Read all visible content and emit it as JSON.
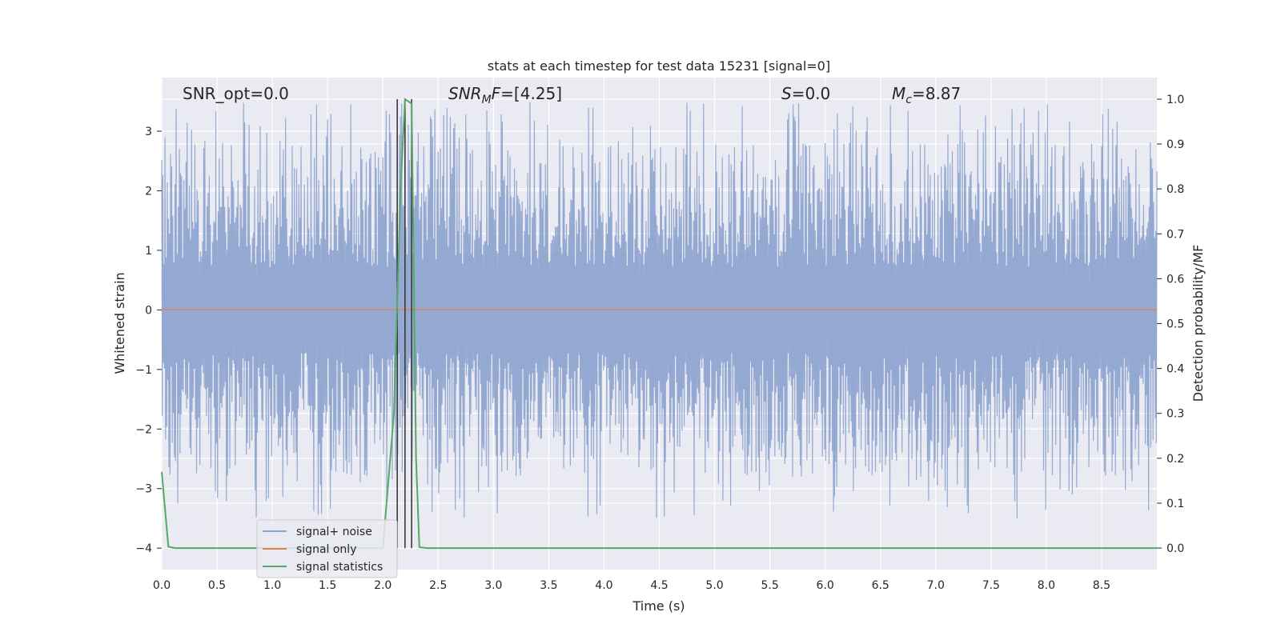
{
  "chart_data": {
    "type": "line",
    "title": "stats at each timestep for test data 15231 [signal=0]",
    "xlabel": "Time (s)",
    "ylabel": "Whitened strain",
    "y2label": "Detection probability/MF",
    "xlim": [
      0.0,
      9.0
    ],
    "ylim": [
      -4.36,
      3.9
    ],
    "y2lim": [
      -0.048,
      1.048
    ],
    "xticks": [
      "0.0",
      "0.5",
      "1.0",
      "1.5",
      "2.0",
      "2.5",
      "3.0",
      "3.5",
      "4.0",
      "4.5",
      "5.0",
      "5.5",
      "6.0",
      "6.5",
      "7.0",
      "7.5",
      "8.0",
      "8.5"
    ],
    "yticks": [
      "3",
      "2",
      "1",
      "0",
      "−1",
      "−2",
      "−3",
      "−4"
    ],
    "y2ticks": [
      "1.0",
      "0.9",
      "0.8",
      "0.7",
      "0.6",
      "0.5",
      "0.4",
      "0.3",
      "0.2",
      "0.1",
      "0.0"
    ],
    "grid": true,
    "legend_position": "lower-left",
    "annotations": {
      "snr_opt": "SNR_opt=0.0",
      "snr_mf": "SNR",
      "snr_mf_sub": "M",
      "snr_mf_mid": "F",
      "snr_mf_val": "=[4.25]",
      "s_sym": "S",
      "s_val": "=0.0",
      "mc_sym": "M",
      "mc_sub": "c",
      "mc_val": "=8.87"
    },
    "series": [
      {
        "name": "signal+ noise",
        "color": "#8fa5d0",
        "description": "Whitened strain noise, roughly between -4 and 3.5 over the full 0–9 s window",
        "envelope_outer": [
          -3.9,
          3.5
        ],
        "envelope_inner": [
          -1.8,
          1.8
        ]
      },
      {
        "name": "signal only",
        "color": "#dd8452",
        "x": [
          0.0,
          9.0
        ],
        "y": [
          0.0,
          0.0
        ]
      },
      {
        "name": "signal statistics",
        "color": "#55a868",
        "axis": "right",
        "x": [
          0.0,
          0.06,
          0.12,
          2.0,
          2.1,
          2.16,
          2.2,
          2.26,
          2.3,
          2.33,
          2.4,
          9.0
        ],
        "y": [
          0.17,
          0.003,
          0.0,
          0.0,
          0.3,
          0.8,
          1.0,
          0.99,
          0.2,
          0.002,
          0.0,
          0.0
        ]
      }
    ],
    "vlines": [
      {
        "x": 2.13,
        "color": "#3a3a3a"
      },
      {
        "x": 2.2,
        "color": "#3a3a3a"
      },
      {
        "x": 2.26,
        "color": "#3a3a3a"
      }
    ]
  },
  "legend": {
    "items": [
      {
        "label": "signal+ noise",
        "color": "#8fa5d0"
      },
      {
        "label": "signal only",
        "color": "#dd8452"
      },
      {
        "label": "signal statistics",
        "color": "#55a868"
      }
    ]
  },
  "colors": {
    "plot_bg": "#eaeaf2",
    "grid": "#ffffff",
    "text": "#262626"
  }
}
